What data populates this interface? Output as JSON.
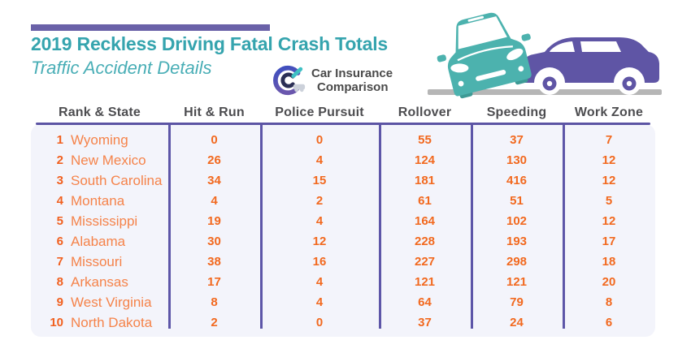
{
  "header": {
    "title": "2019 Reckless Driving Fatal Crash Totals",
    "subtitle": "Traffic Accident Details"
  },
  "logo": {
    "name1": "Car Insurance",
    "name2": "Comparison"
  },
  "chart_data": {
    "type": "table",
    "title": "2019 Reckless Driving Fatal Crash Totals",
    "subtitle": "Traffic Accident Details",
    "columns": [
      "Rank & State",
      "Hit & Run",
      "Police Pursuit",
      "Rollover",
      "Speeding",
      "Work Zone"
    ],
    "rows": [
      {
        "rank": "1",
        "state": "Wyoming",
        "values": [
          0,
          0,
          55,
          37,
          7
        ]
      },
      {
        "rank": "2",
        "state": "New Mexico",
        "values": [
          26,
          4,
          124,
          130,
          12
        ]
      },
      {
        "rank": "3",
        "state": "South Carolina",
        "values": [
          34,
          15,
          181,
          416,
          12
        ]
      },
      {
        "rank": "4",
        "state": "Montana",
        "values": [
          4,
          2,
          61,
          51,
          5
        ]
      },
      {
        "rank": "5",
        "state": "Mississippi",
        "values": [
          19,
          4,
          164,
          102,
          12
        ]
      },
      {
        "rank": "6",
        "state": "Alabama",
        "values": [
          30,
          12,
          228,
          193,
          17
        ]
      },
      {
        "rank": "7",
        "state": "Missouri",
        "values": [
          38,
          16,
          227,
          298,
          18
        ]
      },
      {
        "rank": "8",
        "state": "Arkansas",
        "values": [
          17,
          4,
          121,
          121,
          20
        ]
      },
      {
        "rank": "9",
        "state": "West Virginia",
        "values": [
          8,
          4,
          64,
          79,
          8
        ]
      },
      {
        "rank": "10",
        "state": "North Dakota",
        "values": [
          2,
          0,
          37,
          24,
          6
        ]
      }
    ]
  },
  "colors": {
    "accent_purple": "#6a61a8",
    "title_teal": "#35a4ae",
    "line_purple": "#5c54a4",
    "body_bg": "#f3f4fb",
    "header_text": "#4d4d50",
    "rank_orange": "#f1601f",
    "state_orange": "#f5834a",
    "value_orange": "#f2691f",
    "road_gray": "#b6b6b6",
    "car_teal": "#4cb2ae",
    "car_purple": "#5f55a5"
  },
  "icons": {
    "logo_icon": "car-insurance-comparison-logo-icon",
    "illustration": "rear-end-crash-illustration"
  }
}
